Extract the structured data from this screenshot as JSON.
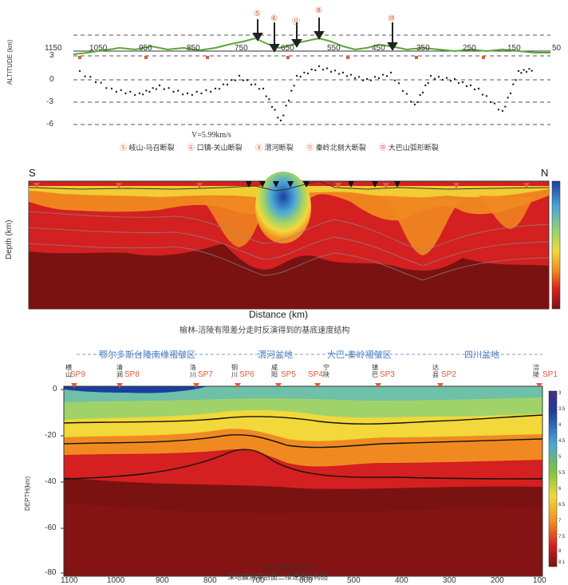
{
  "panel1": {
    "elev_axis_label": "1150",
    "distance_labels": [
      "1050",
      "950",
      "850",
      "750",
      "650",
      "550",
      "450",
      "350",
      "250",
      "150",
      "50"
    ],
    "y_axis_title": "ALTITUDE (km)",
    "y_ticks": [
      "3",
      "0",
      "-3",
      "-6"
    ],
    "markers": [
      "⑤",
      "⑥",
      "⑪",
      "⑧",
      "⑩"
    ],
    "velocity_text": "V=5.99km/s",
    "legend": [
      {
        "num": "⑤",
        "text": "岐山-马召断裂"
      },
      {
        "num": "⑥",
        "text": "口镇-关山断裂"
      },
      {
        "num": "⑧",
        "text": "渭河断裂"
      },
      {
        "num": "⑪",
        "text": "秦岭北侧大断裂"
      },
      {
        "num": "⑩",
        "text": "大巴山弧形断裂"
      }
    ]
  },
  "panel2": {
    "left_label": "S",
    "right_label": "N",
    "y_axis_title": "Depth (km)",
    "x_axis_title": "Distance (km)",
    "caption": "榆林-涪陵有限差分走时反演得到的基底速度结构"
  },
  "panel3": {
    "regions": [
      "鄂尔多斯台隆南缘褶皱区",
      "渭河盆地",
      "大巴-秦岭褶皱区",
      "四川盆地"
    ],
    "shotpoints": [
      "SP9",
      "SP8",
      "SP7",
      "SP6",
      "SP5",
      "SP4",
      "SP3",
      "SP2",
      "SP1"
    ],
    "shot_places": [
      [
        "横",
        "山"
      ],
      [
        "清",
        "涧"
      ],
      [
        "洛",
        "川"
      ],
      [
        "铜",
        "川"
      ],
      [
        "咸",
        "阳"
      ],
      [
        "宁",
        "陕"
      ],
      [
        "镇",
        "巴"
      ],
      [
        "达",
        "县"
      ],
      [
        "涪",
        "陵"
      ]
    ],
    "y_ticks": [
      "0",
      "-20",
      "-40",
      "-60",
      "-80"
    ],
    "y_axis_title": "DEPTH(km)",
    "x_ticks": [
      "1100",
      "1000",
      "900",
      "800",
      "700",
      "600",
      "500",
      "400",
      "300",
      "200",
      "100"
    ],
    "x_axis_title": "DISTANCE(km)",
    "colorbar_ticks": [
      "3",
      "3.5",
      "4",
      "4.5",
      "5",
      "5.5",
      "6",
      "6.5",
      "7",
      "7.5",
      "8",
      "8.1"
    ],
    "caption": "深地震测深剖面二维速度结构图"
  },
  "colors": {
    "elevation_line": "#5aa832",
    "marker_red": "#e25a3a",
    "deep_red": "#7a1212",
    "red": "#d42020",
    "orange": "#f08a20",
    "yellow": "#f2d83a",
    "green": "#7ac23e",
    "blue": "#1b3f9e"
  }
}
